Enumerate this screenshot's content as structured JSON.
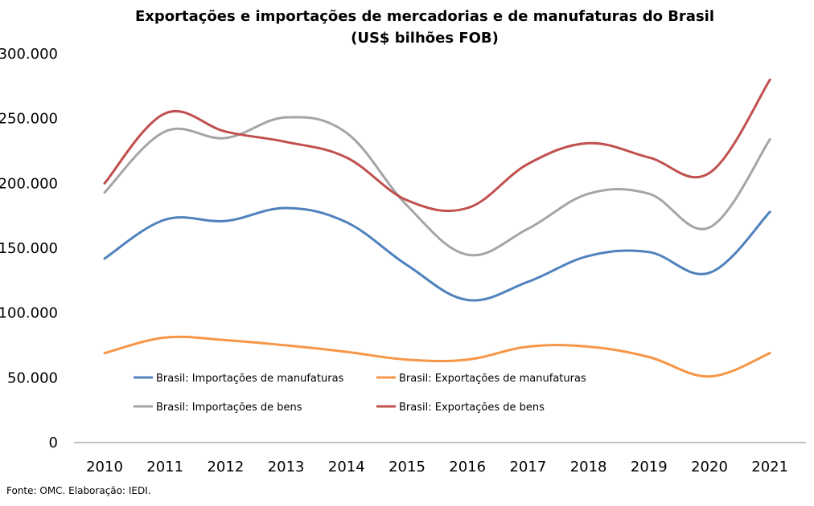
{
  "chart_data": {
    "type": "line",
    "title_lines": [
      "Exportações e importações de mercadorias e de manufaturas do Brasil",
      "(US$ bilhões FOB)"
    ],
    "categories": [
      "2010",
      "2011",
      "2012",
      "2013",
      "2014",
      "2015",
      "2016",
      "2017",
      "2018",
      "2019",
      "2020",
      "2021"
    ],
    "y_ticks": [
      "0",
      "50.000",
      "100.000",
      "150.000",
      "200.000",
      "250.000",
      "300.000"
    ],
    "ylim": [
      0,
      300000
    ],
    "grid": false,
    "legend_position": "inside-bottom-center",
    "series": [
      {
        "name": "Brasil: Importações de manufaturas",
        "color": "#4f81bd",
        "values": [
          142000,
          172000,
          171000,
          181000,
          170000,
          137000,
          110000,
          124000,
          144000,
          147000,
          131000,
          178000
        ]
      },
      {
        "name": "Brasil: Exportações de manufaturas",
        "color": "#f79646",
        "values": [
          69000,
          81000,
          79000,
          75000,
          70000,
          64000,
          64000,
          74000,
          74000,
          66000,
          51000,
          69000
        ]
      },
      {
        "name": "Brasil: Importações de bens",
        "color": "#a5a5a5",
        "values": [
          193000,
          240000,
          235000,
          251000,
          239000,
          183000,
          145000,
          165000,
          192000,
          192000,
          166000,
          234000
        ]
      },
      {
        "name": "Brasil: Exportações de bens",
        "color": "#c0504d",
        "values": [
          200000,
          254000,
          240000,
          232000,
          220000,
          187000,
          181000,
          215000,
          231000,
          220000,
          208000,
          280000
        ]
      }
    ]
  },
  "source_text": "Fonte: OMC. Elaboração: IEDI."
}
